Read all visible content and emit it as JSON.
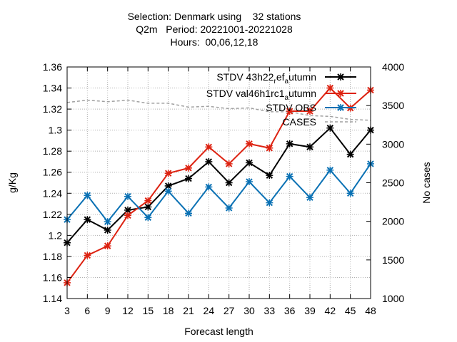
{
  "chart_data": {
    "type": "line",
    "title_lines": [
      "Selection: Denmark using    32 stations",
      "Q2m   Period: 20221001-20221028",
      "Hours:  00,06,12,18"
    ],
    "xlabel": "Forecast length",
    "ylabel": "g/Kg",
    "y2label": "No cases",
    "x": [
      3,
      6,
      9,
      12,
      15,
      18,
      21,
      24,
      27,
      30,
      33,
      36,
      39,
      42,
      45,
      48
    ],
    "xlim": [
      3,
      48
    ],
    "ylim": [
      1.14,
      1.36
    ],
    "y2lim": [
      1000,
      4000
    ],
    "yticks": [
      "1.14",
      "1.16",
      "1.18",
      "1.2",
      "1.22",
      "1.24",
      "1.26",
      "1.28",
      "1.3",
      "1.32",
      "1.34",
      "1.36"
    ],
    "y2ticks": [
      "1000",
      "1500",
      "2000",
      "2500",
      "3000",
      "3500",
      "4000"
    ],
    "grid": true,
    "legend_position": "top-right",
    "series": [
      {
        "name": "STDV 43h22_ref_autumn",
        "label_parts": [
          "STDV 43h22",
          "r",
          "ef",
          "a",
          "utumn"
        ],
        "color": "#000000",
        "axis": "y",
        "values": [
          1.193,
          1.215,
          1.205,
          1.224,
          1.227,
          1.247,
          1.254,
          1.27,
          1.25,
          1.269,
          1.257,
          1.287,
          1.284,
          1.302,
          1.277,
          1.3
        ]
      },
      {
        "name": "STDV val46h1rc1_autumn",
        "label_parts": [
          "STDV val46h1rc1",
          "a",
          "utumn"
        ],
        "color": "#dd2211",
        "axis": "y",
        "values": [
          1.155,
          1.181,
          1.19,
          1.219,
          1.233,
          1.259,
          1.264,
          1.284,
          1.268,
          1.287,
          1.283,
          1.318,
          1.318,
          1.34,
          1.321,
          1.338
        ]
      },
      {
        "name": "STDV OBS",
        "label_parts": [
          "STDV OBS"
        ],
        "color": "#0a71b4",
        "axis": "y",
        "values": [
          1.215,
          1.238,
          1.213,
          1.237,
          1.217,
          1.242,
          1.221,
          1.246,
          1.226,
          1.251,
          1.231,
          1.256,
          1.236,
          1.262,
          1.24,
          1.268
        ]
      },
      {
        "name": "CASES",
        "label_parts": [
          "CASES"
        ],
        "color": "#a0a0a0",
        "axis": "y2",
        "dashed": true,
        "values": [
          3540,
          3570,
          3550,
          3570,
          3530,
          3530,
          3480,
          3490,
          3460,
          3470,
          3420,
          3420,
          3370,
          3360,
          3320,
          3310
        ]
      }
    ]
  }
}
